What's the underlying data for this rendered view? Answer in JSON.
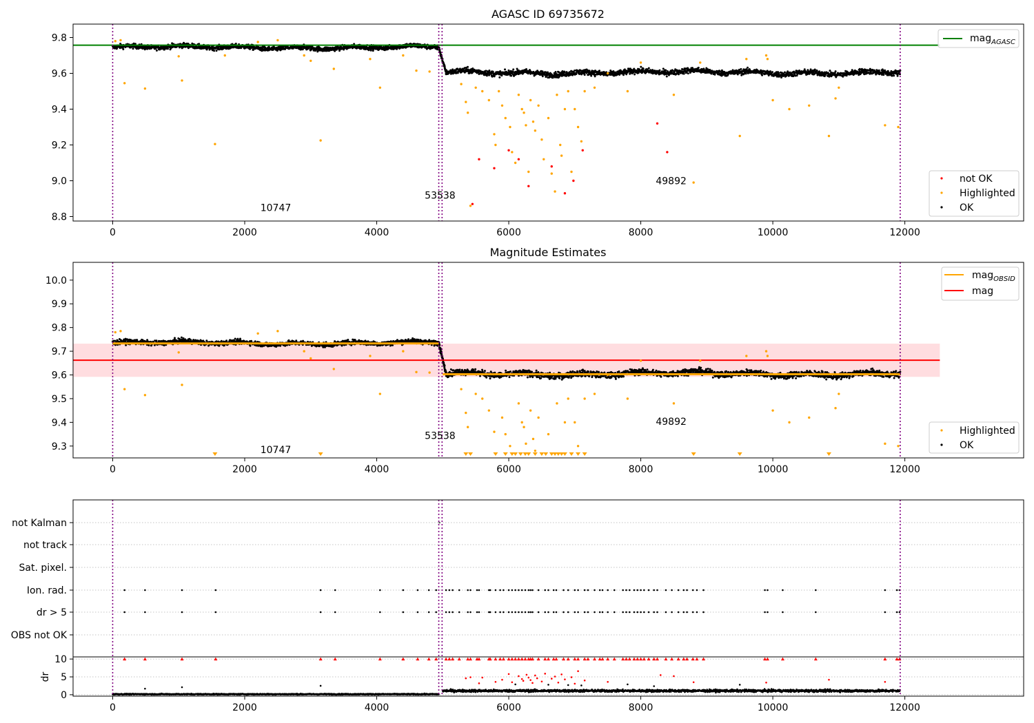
{
  "colors": {
    "ok": "#000000",
    "highlighted": "#ffa500",
    "not_ok": "#ff0000",
    "agasc_line": "#008000",
    "mag_line": "#ff0000",
    "mag_band": "#ffdde0",
    "obsid_mag": "#ffa500",
    "obsid_boundary": "#800080",
    "grid": "#b0b0b0"
  },
  "chart_data": [
    {
      "type": "scatter",
      "title": "AGASC ID 69735672",
      "xlim": [
        -600,
        13800
      ],
      "ylim": [
        8.775,
        9.875
      ],
      "xticks": [
        0,
        2000,
        4000,
        6000,
        8000,
        10000,
        12000
      ],
      "yticks": [
        8.8,
        9.0,
        9.2,
        9.4,
        9.6,
        9.8
      ],
      "x_tick_labels": [
        "0",
        "2000",
        "4000",
        "6000",
        "8000",
        "10000",
        "12000"
      ],
      "y_tick_labels": [
        "8.8",
        "9.0",
        "9.2",
        "9.4",
        "9.6",
        "9.8"
      ],
      "legend_upper": {
        "position": "upper right",
        "entries": [
          {
            "label": "mag",
            "subscript": "AGASC",
            "color": "#008000"
          }
        ]
      },
      "legend_lower": {
        "position": "lower right",
        "entries": [
          {
            "label": "not OK",
            "color": "#ff0000"
          },
          {
            "label": "Highlighted",
            "color": "#ffa500"
          },
          {
            "label": "OK",
            "color": "#000000"
          }
        ]
      },
      "agasc_mag": 9.757,
      "obsid_boundaries": [
        0,
        4940,
        4990,
        11930
      ],
      "obsid_labels": [
        {
          "text": "10747",
          "x": 2470,
          "y": 8.83
        },
        {
          "text": "53538",
          "x": 4960,
          "y": 8.9
        },
        {
          "text": "49892",
          "x": 8460,
          "y": 8.98
        }
      ],
      "ok_series": [
        {
          "x_start": 0,
          "x_end": 4940,
          "mag": 9.745,
          "spread": 0.017
        },
        {
          "x_start": 5050,
          "x_end": 11930,
          "mag": 9.605,
          "spread": 0.02
        }
      ],
      "highlighted_points": [
        {
          "x": 40,
          "y": 9.78
        },
        {
          "x": 120,
          "y": 9.785
        },
        {
          "x": 180,
          "y": 9.545
        },
        {
          "x": 490,
          "y": 9.515
        },
        {
          "x": 1000,
          "y": 9.695
        },
        {
          "x": 1050,
          "y": 9.56
        },
        {
          "x": 1550,
          "y": 9.205
        },
        {
          "x": 1700,
          "y": 9.7
        },
        {
          "x": 2200,
          "y": 9.775
        },
        {
          "x": 2500,
          "y": 9.785
        },
        {
          "x": 2900,
          "y": 9.7
        },
        {
          "x": 3000,
          "y": 9.67
        },
        {
          "x": 3150,
          "y": 9.225
        },
        {
          "x": 3350,
          "y": 9.625
        },
        {
          "x": 3900,
          "y": 9.68
        },
        {
          "x": 4050,
          "y": 9.52
        },
        {
          "x": 4400,
          "y": 9.7
        },
        {
          "x": 4600,
          "y": 9.615
        },
        {
          "x": 4800,
          "y": 9.61
        },
        {
          "x": 5280,
          "y": 9.54
        },
        {
          "x": 5350,
          "y": 9.44
        },
        {
          "x": 5380,
          "y": 9.38
        },
        {
          "x": 5420,
          "y": 8.86
        },
        {
          "x": 5500,
          "y": 9.52
        },
        {
          "x": 5600,
          "y": 9.5
        },
        {
          "x": 5700,
          "y": 9.45
        },
        {
          "x": 5780,
          "y": 9.26
        },
        {
          "x": 5800,
          "y": 9.2
        },
        {
          "x": 5850,
          "y": 9.5
        },
        {
          "x": 5900,
          "y": 9.42
        },
        {
          "x": 5950,
          "y": 9.35
        },
        {
          "x": 6020,
          "y": 9.3
        },
        {
          "x": 6050,
          "y": 9.16
        },
        {
          "x": 6100,
          "y": 9.1
        },
        {
          "x": 6150,
          "y": 9.48
        },
        {
          "x": 6200,
          "y": 9.4
        },
        {
          "x": 6230,
          "y": 9.38
        },
        {
          "x": 6260,
          "y": 9.31
        },
        {
          "x": 6300,
          "y": 9.05
        },
        {
          "x": 6330,
          "y": 9.45
        },
        {
          "x": 6370,
          "y": 9.33
        },
        {
          "x": 6400,
          "y": 9.28
        },
        {
          "x": 6450,
          "y": 9.42
        },
        {
          "x": 6500,
          "y": 9.23
        },
        {
          "x": 6530,
          "y": 9.12
        },
        {
          "x": 6600,
          "y": 9.35
        },
        {
          "x": 6650,
          "y": 9.04
        },
        {
          "x": 6700,
          "y": 8.94
        },
        {
          "x": 6730,
          "y": 9.48
        },
        {
          "x": 6780,
          "y": 9.2
        },
        {
          "x": 6800,
          "y": 9.14
        },
        {
          "x": 6850,
          "y": 9.4
        },
        {
          "x": 6900,
          "y": 9.5
        },
        {
          "x": 6950,
          "y": 9.05
        },
        {
          "x": 7000,
          "y": 9.4
        },
        {
          "x": 7050,
          "y": 9.3
        },
        {
          "x": 7100,
          "y": 9.22
        },
        {
          "x": 7150,
          "y": 9.5
        },
        {
          "x": 7300,
          "y": 9.52
        },
        {
          "x": 7500,
          "y": 9.6
        },
        {
          "x": 7800,
          "y": 9.5
        },
        {
          "x": 8000,
          "y": 9.66
        },
        {
          "x": 8500,
          "y": 9.48
        },
        {
          "x": 8800,
          "y": 8.99
        },
        {
          "x": 8900,
          "y": 9.66
        },
        {
          "x": 9500,
          "y": 9.25
        },
        {
          "x": 9600,
          "y": 9.68
        },
        {
          "x": 9900,
          "y": 9.7
        },
        {
          "x": 9920,
          "y": 9.68
        },
        {
          "x": 10000,
          "y": 9.45
        },
        {
          "x": 10250,
          "y": 9.4
        },
        {
          "x": 10550,
          "y": 9.42
        },
        {
          "x": 10850,
          "y": 9.25
        },
        {
          "x": 10950,
          "y": 9.46
        },
        {
          "x": 11000,
          "y": 9.52
        },
        {
          "x": 11700,
          "y": 9.31
        },
        {
          "x": 11900,
          "y": 9.3
        }
      ],
      "not_ok_points": [
        {
          "x": 5450,
          "y": 8.87
        },
        {
          "x": 5550,
          "y": 9.12
        },
        {
          "x": 5780,
          "y": 9.07
        },
        {
          "x": 6000,
          "y": 9.17
        },
        {
          "x": 6150,
          "y": 9.12
        },
        {
          "x": 6300,
          "y": 8.97
        },
        {
          "x": 6650,
          "y": 9.08
        },
        {
          "x": 6850,
          "y": 8.93
        },
        {
          "x": 6980,
          "y": 9.0
        },
        {
          "x": 7120,
          "y": 9.17
        },
        {
          "x": 8250,
          "y": 9.32
        },
        {
          "x": 8400,
          "y": 9.16
        }
      ]
    },
    {
      "type": "scatter",
      "title": "Magnitude Estimates",
      "xlim": [
        -600,
        13800
      ],
      "ylim": [
        9.25,
        10.075
      ],
      "xticks": [
        0,
        2000,
        4000,
        6000,
        8000,
        10000,
        12000
      ],
      "yticks": [
        9.3,
        9.4,
        9.5,
        9.6,
        9.7,
        9.8,
        9.9,
        10.0
      ],
      "x_tick_labels": [
        "0",
        "2000",
        "4000",
        "6000",
        "8000",
        "10000",
        "12000"
      ],
      "y_tick_labels": [
        "9.3",
        "9.4",
        "9.5",
        "9.6",
        "9.7",
        "9.8",
        "9.9",
        "10.0"
      ],
      "legend_upper": {
        "position": "upper right",
        "entries": [
          {
            "label": "mag",
            "subscript": "OBSID",
            "color": "#ffa500"
          },
          {
            "label": "mag",
            "color": "#ff0000"
          }
        ]
      },
      "legend_lower": {
        "position": "lower right",
        "entries": [
          {
            "label": "Highlighted",
            "color": "#ffa500"
          },
          {
            "label": "OK",
            "color": "#000000"
          }
        ]
      },
      "mag": 9.662,
      "mag_band": [
        9.592,
        9.732
      ],
      "mag_band_x": [
        -600,
        12530
      ],
      "obsid_mag_segments": [
        {
          "x_start": 0,
          "x_end": 4940,
          "mag": 9.733
        },
        {
          "x_start": 5000,
          "x_end": 11930,
          "mag": 9.603
        }
      ],
      "obsid_boundaries": [
        0,
        4940,
        4990,
        11930
      ],
      "obsid_labels": [
        {
          "text": "10747",
          "x": 2470,
          "y": 9.27
        },
        {
          "text": "53538",
          "x": 4960,
          "y": 9.33
        },
        {
          "text": "49892",
          "x": 8460,
          "y": 9.39
        }
      ],
      "ok_series": [
        {
          "x_start": 0,
          "x_end": 4940,
          "mag": 9.735,
          "spread": 0.013
        },
        {
          "x_start": 5050,
          "x_end": 11930,
          "mag": 9.605,
          "spread": 0.017
        }
      ],
      "highlighted_points": [
        {
          "x": 40,
          "y": 9.78
        },
        {
          "x": 120,
          "y": 9.785
        },
        {
          "x": 180,
          "y": 9.54
        },
        {
          "x": 490,
          "y": 9.515
        },
        {
          "x": 1000,
          "y": 9.695
        },
        {
          "x": 1050,
          "y": 9.558
        },
        {
          "x": 2200,
          "y": 9.775
        },
        {
          "x": 2500,
          "y": 9.785
        },
        {
          "x": 2900,
          "y": 9.7
        },
        {
          "x": 3000,
          "y": 9.67
        },
        {
          "x": 3350,
          "y": 9.625
        },
        {
          "x": 3900,
          "y": 9.68
        },
        {
          "x": 4050,
          "y": 9.52
        },
        {
          "x": 4400,
          "y": 9.7
        },
        {
          "x": 4600,
          "y": 9.612
        },
        {
          "x": 4800,
          "y": 9.61
        },
        {
          "x": 5280,
          "y": 9.54
        },
        {
          "x": 5350,
          "y": 9.44
        },
        {
          "x": 5380,
          "y": 9.38
        },
        {
          "x": 5500,
          "y": 9.52
        },
        {
          "x": 5600,
          "y": 9.5
        },
        {
          "x": 5700,
          "y": 9.45
        },
        {
          "x": 5780,
          "y": 9.36
        },
        {
          "x": 5900,
          "y": 9.42
        },
        {
          "x": 5950,
          "y": 9.35
        },
        {
          "x": 6020,
          "y": 9.3
        },
        {
          "x": 6150,
          "y": 9.48
        },
        {
          "x": 6200,
          "y": 9.4
        },
        {
          "x": 6230,
          "y": 9.38
        },
        {
          "x": 6260,
          "y": 9.31
        },
        {
          "x": 6330,
          "y": 9.45
        },
        {
          "x": 6370,
          "y": 9.33
        },
        {
          "x": 6400,
          "y": 9.28
        },
        {
          "x": 6450,
          "y": 9.42
        },
        {
          "x": 6600,
          "y": 9.35
        },
        {
          "x": 6730,
          "y": 9.48
        },
        {
          "x": 6850,
          "y": 9.4
        },
        {
          "x": 6900,
          "y": 9.5
        },
        {
          "x": 7000,
          "y": 9.4
        },
        {
          "x": 7050,
          "y": 9.3
        },
        {
          "x": 7150,
          "y": 9.5
        },
        {
          "x": 7300,
          "y": 9.52
        },
        {
          "x": 7500,
          "y": 9.6
        },
        {
          "x": 7800,
          "y": 9.5
        },
        {
          "x": 8000,
          "y": 9.66
        },
        {
          "x": 8500,
          "y": 9.48
        },
        {
          "x": 8900,
          "y": 9.66
        },
        {
          "x": 9600,
          "y": 9.68
        },
        {
          "x": 9900,
          "y": 9.7
        },
        {
          "x": 9920,
          "y": 9.68
        },
        {
          "x": 10000,
          "y": 9.45
        },
        {
          "x": 10250,
          "y": 9.4
        },
        {
          "x": 10550,
          "y": 9.42
        },
        {
          "x": 10950,
          "y": 9.46
        },
        {
          "x": 11000,
          "y": 9.52
        },
        {
          "x": 11700,
          "y": 9.31
        },
        {
          "x": 11900,
          "y": 9.3
        }
      ],
      "out_of_range_markers_x": [
        1550,
        3150,
        5350,
        5420,
        5800,
        5950,
        6050,
        6100,
        6180,
        6250,
        6300,
        6400,
        6500,
        6560,
        6650,
        6700,
        6750,
        6800,
        6850,
        6950,
        7050,
        7150,
        8800,
        9500,
        10850
      ]
    },
    {
      "type": "scatter",
      "title": "",
      "xlim": [
        -600,
        13800
      ],
      "xticks": [
        0,
        2000,
        4000,
        6000,
        8000,
        10000,
        12000
      ],
      "x_tick_labels": [
        "0",
        "2000",
        "4000",
        "6000",
        "8000",
        "10000",
        "12000"
      ],
      "flag_rows": [
        "not Kalman",
        "not track",
        "Sat. pixel.",
        "Ion. rad.",
        "dr > 5",
        "OBS not OK"
      ],
      "obsid_boundaries": [
        0,
        4940,
        4990,
        11930
      ],
      "flag_points_x": [
        180,
        490,
        1050,
        1560,
        3150,
        3370,
        4050,
        4400,
        4620,
        4790,
        4900,
        5050,
        5100,
        5150,
        5250,
        5380,
        5420,
        5520,
        5550,
        5700,
        5720,
        5800,
        5870,
        5920,
        6000,
        6050,
        6100,
        6150,
        6200,
        6250,
        6300,
        6330,
        6360,
        6450,
        6550,
        6600,
        6680,
        6720,
        6830,
        6900,
        7000,
        7050,
        7150,
        7200,
        7300,
        7380,
        7420,
        7500,
        7600,
        7730,
        7780,
        7830,
        7900,
        7950,
        8000,
        8050,
        8120,
        8200,
        8250,
        8380,
        8470,
        8570,
        8650,
        8700,
        8790,
        8850,
        8950,
        9880,
        9920,
        10150,
        10650,
        11700,
        11880,
        11920
      ],
      "not_kalman_x": [
        4950
      ],
      "dr": {
        "ylabel": "dr",
        "ylim": [
          -0.4,
          10.6
        ],
        "yticks": [
          0,
          5,
          10
        ],
        "y_tick_labels": [
          "0",
          "5",
          "10"
        ],
        "ok_series": [
          {
            "x_start": 0,
            "x_end": 4940,
            "level": 0.15,
            "spread": 0.2
          },
          {
            "x_start": 5000,
            "x_end": 11930,
            "level": 1.1,
            "spread": 0.5
          }
        ],
        "capped_value": 10,
        "scattered_points": [
          {
            "x": 490,
            "y": 1.7
          },
          {
            "x": 1050,
            "y": 2.1
          },
          {
            "x": 3150,
            "y": 2.5
          },
          {
            "x": 5350,
            "y": 4.6
          },
          {
            "x": 5420,
            "y": 4.9
          },
          {
            "x": 5550,
            "y": 3.2
          },
          {
            "x": 5600,
            "y": 4.8
          },
          {
            "x": 5800,
            "y": 3.6
          },
          {
            "x": 5900,
            "y": 4.2
          },
          {
            "x": 6000,
            "y": 5.8
          },
          {
            "x": 6050,
            "y": 3.5
          },
          {
            "x": 6100,
            "y": 2.9
          },
          {
            "x": 6150,
            "y": 5.2
          },
          {
            "x": 6200,
            "y": 4.4
          },
          {
            "x": 6220,
            "y": 3.9
          },
          {
            "x": 6270,
            "y": 5.6
          },
          {
            "x": 6300,
            "y": 4.8
          },
          {
            "x": 6330,
            "y": 4.1
          },
          {
            "x": 6360,
            "y": 3.3
          },
          {
            "x": 6400,
            "y": 5.4
          },
          {
            "x": 6430,
            "y": 4.6
          },
          {
            "x": 6500,
            "y": 3.7
          },
          {
            "x": 6550,
            "y": 5.9
          },
          {
            "x": 6600,
            "y": 2.8
          },
          {
            "x": 6650,
            "y": 4.5
          },
          {
            "x": 6700,
            "y": 5.1
          },
          {
            "x": 6750,
            "y": 3.4
          },
          {
            "x": 6800,
            "y": 5.7
          },
          {
            "x": 6850,
            "y": 4.3
          },
          {
            "x": 6900,
            "y": 2.7
          },
          {
            "x": 6950,
            "y": 4.9
          },
          {
            "x": 7000,
            "y": 3.1
          },
          {
            "x": 7050,
            "y": 6.6
          },
          {
            "x": 7100,
            "y": 2.6
          },
          {
            "x": 7150,
            "y": 4.0
          },
          {
            "x": 7500,
            "y": 3.6
          },
          {
            "x": 7800,
            "y": 2.9
          },
          {
            "x": 8200,
            "y": 2.4
          },
          {
            "x": 8300,
            "y": 5.5
          },
          {
            "x": 8500,
            "y": 5.2
          },
          {
            "x": 8800,
            "y": 3.5
          },
          {
            "x": 9500,
            "y": 2.8
          },
          {
            "x": 9900,
            "y": 3.4
          },
          {
            "x": 10850,
            "y": 4.2
          },
          {
            "x": 11700,
            "y": 3.6
          }
        ]
      }
    }
  ]
}
